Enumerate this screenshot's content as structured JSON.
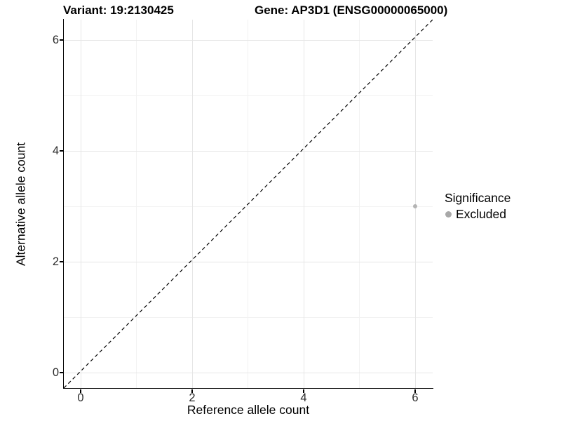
{
  "chart_data": {
    "type": "scatter",
    "titles": {
      "left": "Variant: 19:2130425",
      "right": "Gene: AP3D1 (ENSG00000065000)"
    },
    "xlabel": "Reference allele count",
    "ylabel": "Alternative allele count",
    "xlim": [
      -0.3,
      6.3
    ],
    "ylim": [
      -0.3,
      6.3
    ],
    "x_ticks": [
      0,
      2,
      4,
      6
    ],
    "y_ticks": [
      0,
      2,
      4,
      6
    ],
    "x_minor_ticks": [
      1,
      3,
      5
    ],
    "y_minor_ticks": [
      1,
      3,
      5
    ],
    "grid": "major+minor",
    "reference_line": {
      "type": "identity",
      "slope": 1,
      "intercept": 0,
      "style": "dashed",
      "color": "#000000"
    },
    "series": [
      {
        "name": "Excluded",
        "color": "#b4b4b4",
        "points": [
          {
            "x": 6,
            "y": 3
          }
        ]
      }
    ],
    "legend": {
      "title": "Significance",
      "position": "right",
      "items": [
        {
          "label": "Excluded",
          "color": "#a8a8a8",
          "marker": "circle"
        }
      ]
    },
    "colors": {
      "grid_major": "#e6e6e6",
      "grid_minor": "#f2f2f2",
      "axis_line": "#000000",
      "tick_label": "#2b2b2b"
    }
  }
}
